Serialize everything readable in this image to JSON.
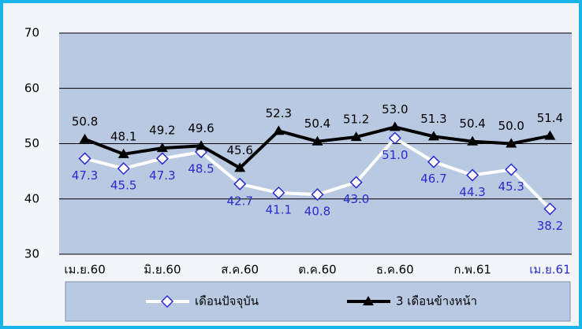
{
  "chart_data": {
    "type": "line",
    "categories": [
      "เม.ย.60",
      null,
      "มิ.ย.60",
      null,
      "ส.ค.60",
      null,
      "ต.ค.60",
      null,
      "ธ.ค.60",
      null,
      "ก.พ.61",
      null,
      "เม.ย.61"
    ],
    "series": [
      {
        "name": "เดือนปัจจุบัน",
        "color": "#ffffff",
        "marker_color": "#2a2ad0",
        "marker": "diamond",
        "values": [
          47.3,
          45.5,
          47.3,
          48.5,
          42.7,
          41.1,
          40.8,
          43.0,
          51.0,
          46.7,
          44.3,
          45.3,
          38.2
        ],
        "value_labels": [
          "47.3",
          "45.5",
          "47.3",
          "48.5",
          "42.7",
          "41.1",
          "40.8",
          "43.0",
          "51.0",
          "46.7",
          "44.3",
          "45.3",
          "38.2"
        ]
      },
      {
        "name": "3 เดือนข้างหน้า",
        "color": "#000000",
        "marker_color": "#000000",
        "marker": "triangle",
        "values": [
          50.8,
          48.1,
          49.2,
          49.6,
          45.6,
          52.3,
          50.4,
          51.2,
          53.0,
          51.3,
          50.4,
          50.0,
          51.4
        ],
        "value_labels": [
          "50.8",
          "48.1",
          "49.2",
          "49.6",
          "45.6",
          "52.3",
          "50.4",
          "51.2",
          "53.0",
          "51.3",
          "50.4",
          "50.0",
          "51.4"
        ]
      }
    ],
    "ylim": [
      30,
      70
    ],
    "yticks": [
      30,
      40,
      50,
      60,
      70
    ],
    "grid": true
  }
}
